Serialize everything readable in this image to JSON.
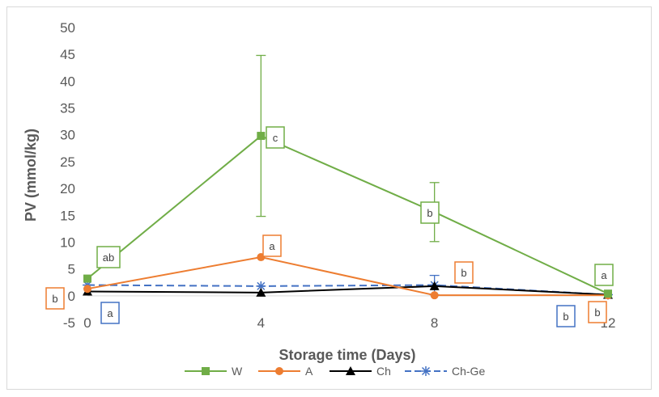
{
  "chart_data": {
    "type": "line",
    "xlabel": "Storage time (Days)",
    "ylabel": "PV (mmol/kg)",
    "x": [
      0,
      4,
      8,
      12
    ],
    "xlim": [
      0,
      12
    ],
    "ylim": [
      -5,
      50
    ],
    "x_ticks": [
      "0",
      "4",
      "8",
      "12"
    ],
    "y_ticks": [
      "-5",
      "0",
      "5",
      "10",
      "15",
      "20",
      "25",
      "30",
      "35",
      "40",
      "45",
      "50"
    ],
    "grid": false,
    "legend_position": "bottom",
    "series": [
      {
        "name": "W",
        "color": "#70ad47",
        "marker": "square",
        "dash": false,
        "values": [
          3.2,
          29.8,
          15.6,
          0.4
        ],
        "error": [
          0,
          15.0,
          5.5,
          0
        ],
        "letters": [
          "ab",
          "c",
          "b",
          "a"
        ]
      },
      {
        "name": "A",
        "color": "#ed7d31",
        "marker": "circle",
        "dash": false,
        "values": [
          1.3,
          7.2,
          0.1,
          0.1
        ],
        "error": [
          0,
          0,
          0,
          0
        ],
        "letters": [
          "b",
          "a",
          "b",
          "b"
        ]
      },
      {
        "name": "Ch",
        "color": "#000000",
        "marker": "triangle",
        "dash": false,
        "values": [
          0.8,
          0.6,
          1.8,
          0.2
        ],
        "error": [
          0,
          0,
          0,
          0
        ]
      },
      {
        "name": "Ch-Ge",
        "color": "#4472c4",
        "marker": "star",
        "dash": true,
        "values": [
          2.0,
          1.8,
          2.0,
          0.2
        ],
        "error": [
          0,
          0,
          1.8,
          0
        ],
        "letters": [
          "a",
          "",
          "",
          "b"
        ]
      }
    ]
  }
}
